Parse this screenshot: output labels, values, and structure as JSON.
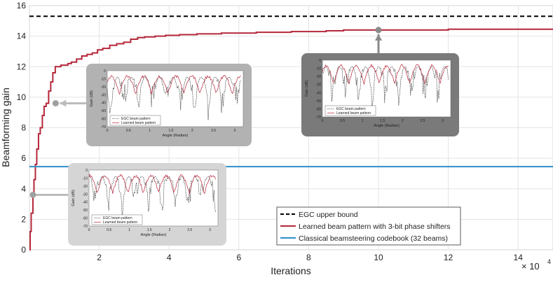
{
  "chart_data": {
    "type": "line",
    "title": "",
    "xlabel": "Iterations",
    "ylabel": "Beamforming gain",
    "x_exponent_label": "× 10",
    "x_exponent_power": "4",
    "xlim": [
      0,
      15
    ],
    "ylim": [
      0,
      16
    ],
    "xticks": [
      2,
      4,
      6,
      8,
      10,
      12,
      14
    ],
    "xtick_labels": [
      "2",
      "4",
      "6",
      "8",
      "10",
      "12",
      "14"
    ],
    "yticks": [
      0,
      2,
      4,
      6,
      8,
      10,
      12,
      14,
      16
    ],
    "ytick_labels": [
      "0",
      "2",
      "4",
      "6",
      "8",
      "10",
      "12",
      "14",
      "16"
    ],
    "grid": true,
    "legend_position": "bottom-right",
    "series": [
      {
        "name": "EGC upper bound",
        "style": "dashed",
        "color": "#000000",
        "x": [
          0,
          15
        ],
        "y": [
          15.3,
          15.3
        ]
      },
      {
        "name": "Learned beam pattern with 3-bit phase shifters",
        "style": "stairs",
        "color": "#b5273a",
        "x": [
          0,
          0.02,
          0.05,
          0.1,
          0.13,
          0.17,
          0.21,
          0.26,
          0.31,
          0.37,
          0.42,
          0.48,
          0.55,
          0.61,
          0.67,
          0.74,
          0.8,
          0.9,
          1.0,
          1.1,
          1.2,
          1.35,
          1.5,
          1.65,
          1.8,
          1.95,
          2.1,
          2.3,
          2.5,
          2.7,
          2.9,
          3.1,
          3.3,
          3.6,
          3.9,
          4.3,
          4.8,
          5.5,
          6.5,
          7.5,
          8.5,
          9.0,
          10.0,
          12.0,
          15.0
        ],
        "y": [
          0.0,
          1.2,
          2.4,
          3.6,
          4.6,
          5.6,
          6.6,
          7.6,
          8.0,
          8.8,
          9.4,
          9.6,
          10.4,
          11.0,
          11.6,
          12.0,
          12.0,
          12.1,
          12.1,
          12.2,
          12.3,
          12.5,
          12.7,
          12.8,
          12.9,
          13.1,
          13.2,
          13.4,
          13.5,
          13.6,
          13.8,
          13.9,
          13.95,
          14.0,
          14.05,
          14.1,
          14.15,
          14.2,
          14.25,
          14.3,
          14.35,
          14.4,
          14.4,
          14.45,
          14.45
        ]
      },
      {
        "name": "Classical beamsteering codebook (32 beams)",
        "style": "solid",
        "color": "#2f8fc8",
        "x": [
          0,
          15
        ],
        "y": [
          5.45,
          5.45
        ]
      }
    ],
    "annotations": [
      {
        "anchor_x": 0.1,
        "anchor_y": 3.6
      },
      {
        "anchor_x": 0.75,
        "anchor_y": 9.6
      },
      {
        "anchor_x": 10.0,
        "anchor_y": 14.4
      }
    ],
    "insets": [
      {
        "xlabel": "Angle (Radian)",
        "ylabel": "Gain (dB)",
        "xticks": [
          "0",
          "0.5",
          "1",
          "1.5",
          "2",
          "2.5",
          "3"
        ],
        "yticks": [
          "0",
          "-10",
          "-20",
          "-30",
          "-40",
          "-50",
          "-60",
          "-70"
        ],
        "legend": [
          "EGC beam pattern",
          "Learned beam pattern"
        ]
      },
      {
        "xlabel": "Angle (Radian)",
        "ylabel": "Gain (dB)",
        "xticks": [
          "0",
          "0.5",
          "1",
          "1.5",
          "2",
          "2.5",
          "3"
        ],
        "yticks": [
          "0",
          "-10",
          "-20",
          "-30",
          "-40",
          "-50",
          "-60",
          "-70"
        ],
        "legend": [
          "EGC beam pattern",
          "Learned beam pattern"
        ]
      },
      {
        "xlabel": "Angle (Radian)",
        "ylabel": "Gain (dB)",
        "xticks": [
          "0",
          "0.5",
          "1",
          "1.5",
          "2",
          "2.5",
          "3"
        ],
        "yticks": [
          "0",
          "-10",
          "-20",
          "-30",
          "-40",
          "-50",
          "-60",
          "-70"
        ],
        "legend": [
          "EGC beam pattern",
          "Learned beam pattern"
        ]
      }
    ]
  }
}
